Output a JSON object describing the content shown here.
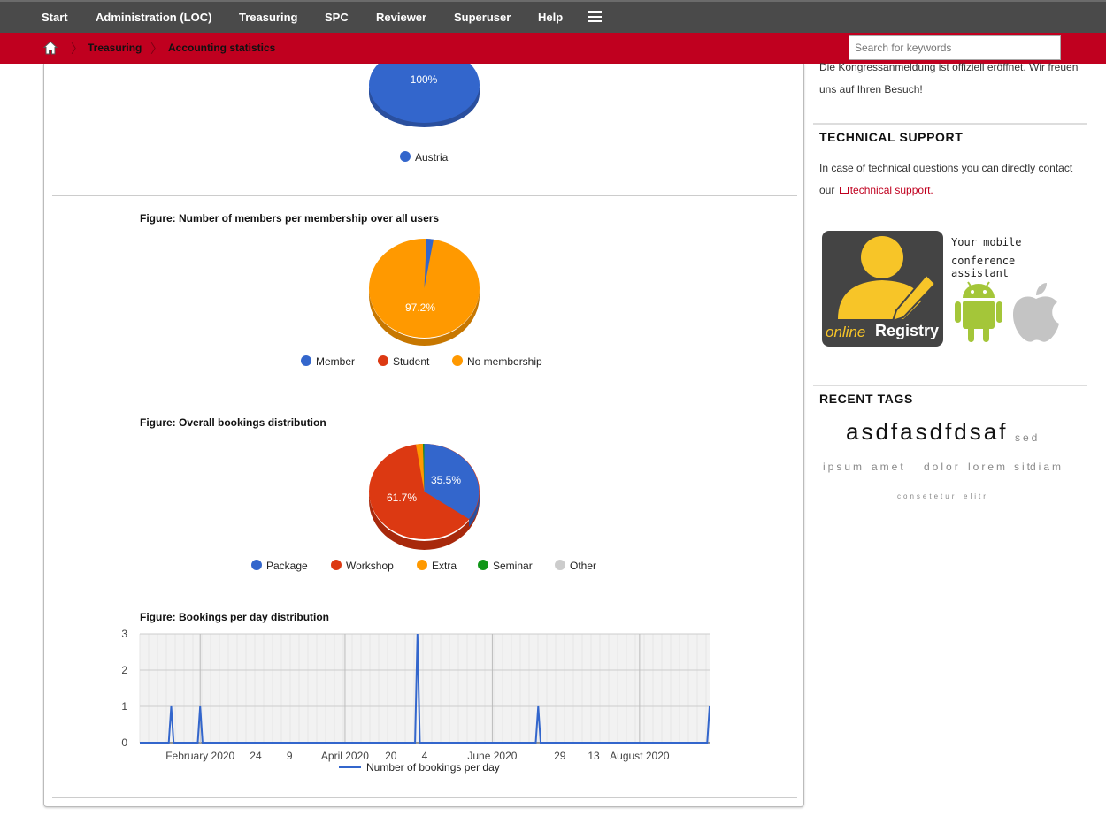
{
  "nav": {
    "items": [
      "Start",
      "Administration (LOC)",
      "Treasuring",
      "SPC",
      "Reviewer",
      "Superuser",
      "Help"
    ]
  },
  "breadcrumb": {
    "items": [
      "Treasuring",
      "Accounting statistics"
    ]
  },
  "search": {
    "placeholder": "Search for keywords"
  },
  "main": {
    "pie1": {
      "legend": [
        "Austria"
      ],
      "label": "100%"
    },
    "pie2": {
      "title": "Figure: Number of members per membership over all users",
      "legend": [
        "Member",
        "Student",
        "No membership"
      ],
      "label": "97.2%"
    },
    "pie3": {
      "title": "Figure: Overall bookings distribution",
      "legend": [
        "Package",
        "Workshop",
        "Extra",
        "Seminar",
        "Other"
      ],
      "label_package": "35.5%",
      "label_workshop": "61.7%"
    },
    "line": {
      "title": "Figure: Bookings per day distribution"
    }
  },
  "chart_data": [
    {
      "type": "pie",
      "categories": [
        "Austria"
      ],
      "values": [
        100
      ],
      "labels": [
        "100%"
      ],
      "colors": [
        "#3366cc"
      ]
    },
    {
      "type": "pie",
      "title": "Figure: Number of members per membership over all users",
      "categories": [
        "Member",
        "Student",
        "No membership"
      ],
      "values": [
        2.8,
        0,
        97.2
      ],
      "labels": [
        "",
        "",
        "97.2%"
      ],
      "colors": [
        "#3366cc",
        "#dc3912",
        "#ff9900"
      ]
    },
    {
      "type": "pie",
      "title": "Figure: Overall bookings distribution",
      "categories": [
        "Package",
        "Workshop",
        "Extra",
        "Seminar",
        "Other"
      ],
      "values": [
        35.5,
        61.7,
        2.3,
        0.5,
        0
      ],
      "labels": [
        "35.5%",
        "61.7%",
        "",
        "",
        ""
      ],
      "colors": [
        "#3366cc",
        "#dc3912",
        "#ff9900",
        "#109618",
        "#cccccc"
      ]
    },
    {
      "type": "line",
      "title": "Figure: Bookings per day distribution",
      "x_tick_labels": [
        "February 2020",
        "24",
        "9",
        "April 2020",
        "20",
        "4",
        "June 2020",
        "29",
        "13",
        "August 2020"
      ],
      "ylim": [
        0,
        3
      ],
      "y_ticks": [
        0,
        1,
        2,
        3
      ],
      "grid": true,
      "legend_position": "bottom",
      "series": [
        {
          "name": "Number of bookings per day",
          "color": "#3366cc",
          "x": [
            "2020-01-20",
            "2020-02-01",
            "2020-05-01",
            "2020-06-20",
            "2020-08-30"
          ],
          "y": [
            1,
            1,
            3,
            1,
            1
          ]
        }
      ]
    }
  ],
  "sidebar": {
    "intro": "Die Kongressanmeldung ist offiziell eröffnet. Wir freuen uns auf Ihren Besuch!",
    "support_head": "TECHNICAL SUPPORT",
    "support_text": "In case of technical questions you can directly contact our",
    "support_link": "technical support.",
    "app": {
      "tagline_1": "Your mobile",
      "tagline_2": "conference assistant",
      "brand_online": "online",
      "brand_registry": "Registry"
    },
    "tags_head": "RECENT TAGS",
    "tags": [
      "asdfasdfdsaf",
      "sed",
      "ipsum",
      "amet",
      "dolor",
      "lorem",
      "sit",
      "diam",
      "consetetur",
      "elitr"
    ]
  }
}
